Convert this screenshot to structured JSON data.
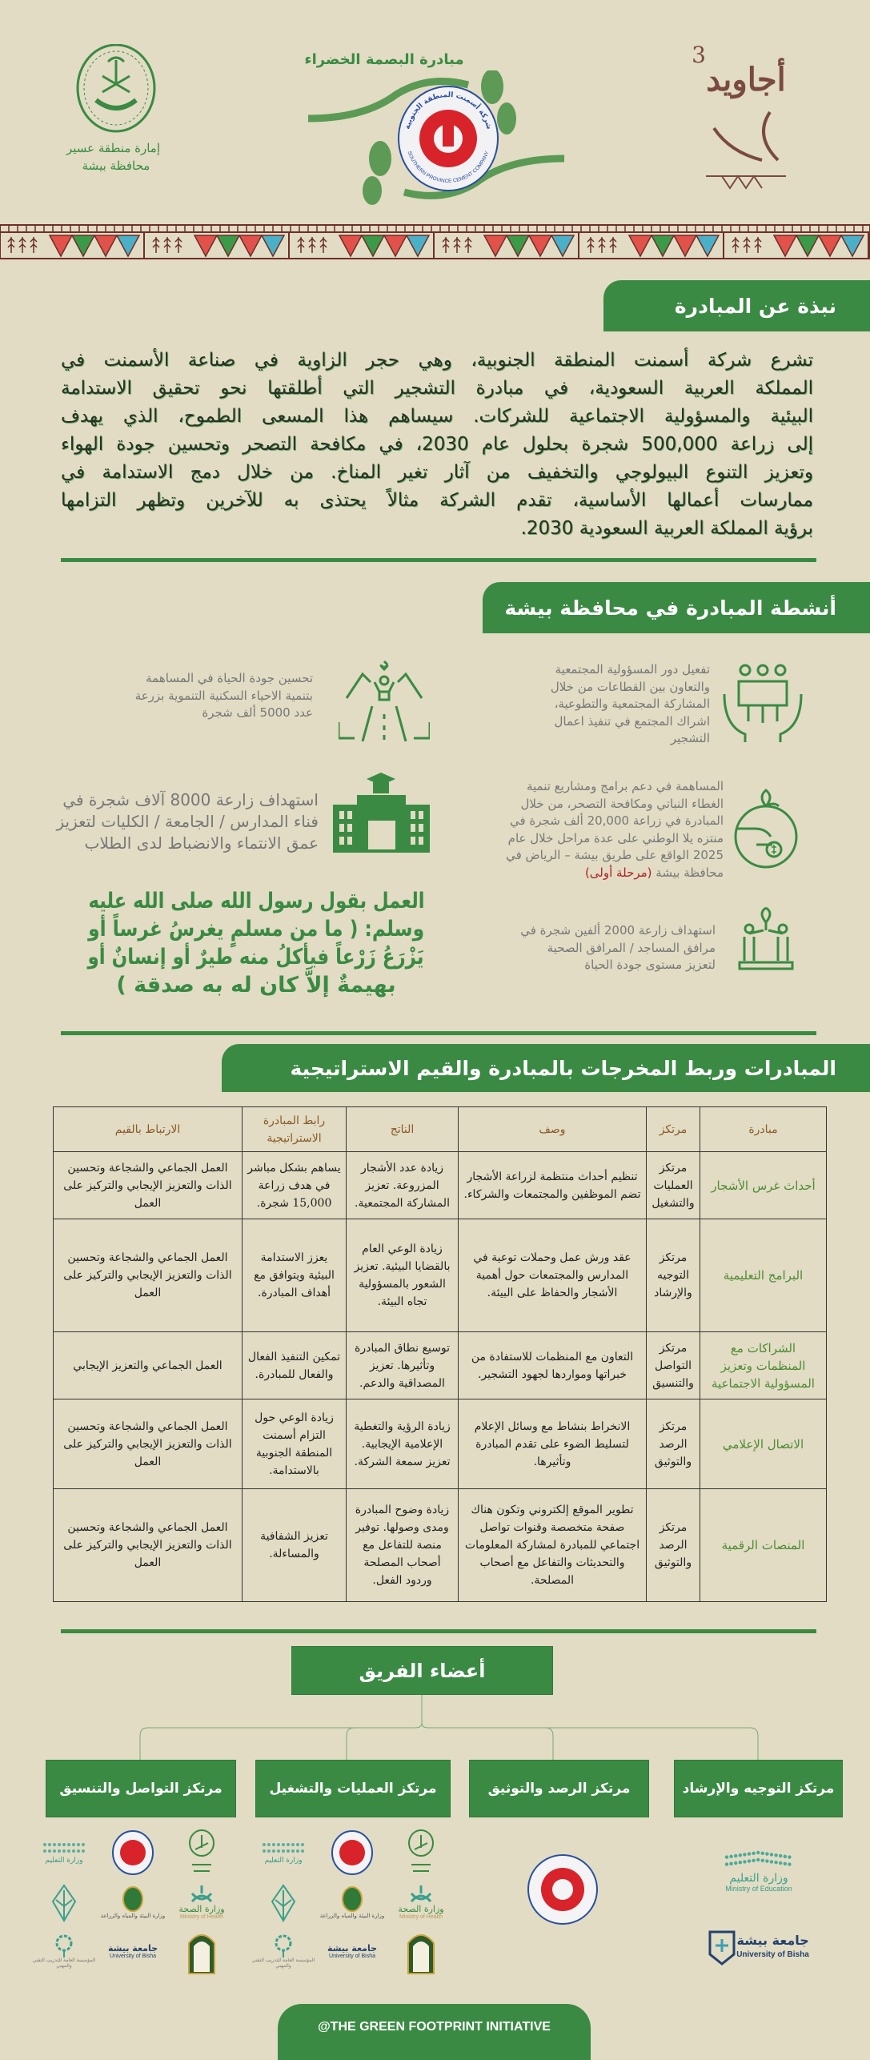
{
  "colors": {
    "brand_green": "#3a8a43",
    "background": "#e1dcc3",
    "highlight_red": "#b0202a",
    "cement_red": "#d8232a",
    "cement_blue": "#2a4fa0"
  },
  "header": {
    "initiative_title": "مبادرة البصمة الخضراء",
    "left_logo_lettering": [
      "إمارة منطقة عسير",
      "محافظة بيشة"
    ],
    "center_logo_lettering": [
      "شركة أسمنت المنطقة الجنوبية",
      "SOUTHERN PROVINCE CEMENT COMPANY"
    ],
    "right_logo_lettering": [
      "أجاويد",
      "3"
    ]
  },
  "about": {
    "title": "نبذة عن المبادرة",
    "lines": [
      "تشرع شركة أسمنت المنطقة الجنوبية، وهي حجر الزاوية في صناعة الأسمنت في",
      "المملكة العربية السعودية، في مبادرة التشجير التي أطلقتها نحو تحقيق الاستدامة",
      "البيئية والمسؤولية الاجتماعية للشركات. سيساهم هذا المسعى الطموح، الذي يهدف",
      "إلى زراعة 500,000 شجرة بحلول عام 2030، في مكافحة التصحر وتحسين جودة الهواء",
      "وتعزيز التنوع البيولوجي والتخفيف من آثار تغير المناخ. من خلال دمج الاستدامة في",
      "ممارسات أعمالها الأساسية، تقدم الشركة مثالاً يحتذى به للآخرين وتظهر التزامها",
      "برؤية المملكة العربية السعودية 2030."
    ]
  },
  "activities": {
    "title": "أنشطة المبادرة في محافظة بيشة",
    "items": [
      {
        "icon": "community-hands-icon",
        "lines": [
          "تفعيل دور المسؤولية المجتمعية",
          "والتعاون بين القطاعات من خلال",
          "المشاركة المجتمعية والتطوعية،",
          "اشراك المجتمع في تنفيذ اعمال",
          "التشجير"
        ]
      },
      {
        "icon": "neighborhood-road-icon",
        "lines": [
          "تحسين جودة الحياة في المساهمة",
          "بتنمية الاحياء السكنية التنموية بزرعة",
          "عدد 5000 ألف شجرة"
        ]
      },
      {
        "icon": "money-plant-hand-icon",
        "lines": [
          "المساهمة في دعم برامج ومشاريع تنمية",
          "الغطاء النباتي ومكافحة التصحر، من خلال",
          "المبادرة في زراعة 20,000 ألف شجرة في",
          "منتزه يلا الوطني على عدة مراحل خلال عام",
          "2025 الواقع على طريق بيشة – الرياض في"
        ],
        "last_line": "محافظة بيشة",
        "highlight": "(مرحلة أولى)"
      },
      {
        "icon": "school-building-icon",
        "lines": [
          "استهداف زارعة 8000 آلاف شجرة في",
          "فناء المدارس / الجامعة / الكليات لتعزيز",
          "عمق الانتماء والانضباط لدى الطلاب"
        ]
      },
      {
        "icon": "people-planting-icon",
        "lines": [
          "استهداف زارعة 2000 ألفين شجرة في",
          "مرافق المساجد / المرافق الصحية",
          "لتعزيز مستوى جودة الحياة"
        ]
      }
    ],
    "quote_lines": [
      "العمل بقول رسول الله صلى الله عليه",
      "وسلم: ( ما من مسلمٍ يغرسُ غرساً أو",
      "يَزْرَعُ زَرْعاً فيأكلُ منه طيرٌ  أو إنسانٌ أو",
      "بهيمةٌ إلاَّ كان له به صدقة )"
    ]
  },
  "strategy": {
    "title": "المبادرات وربط المخرجات بالمبادرة والقيم الاستراتيجية",
    "headers": [
      "مبادرة",
      "مرتكز",
      "وصف",
      "الناتج",
      "رابط المبادرة الاستراتيجية",
      "الارتباط بالقيم"
    ],
    "rows": [
      [
        "أحداث غرس الأشجار",
        "مرتكز العمليات والتشغيل",
        "تنظيم أحداث منتظمة لزراعة الأشجار تضم الموظفين والمجتمعات والشركاء.",
        "زيادة عدد الأشجار المزروعة. تعزيز المشاركة المجتمعية.",
        "يساهم بشكل مباشر في هدف زراعة 15,000 شجرة.",
        "العمل الجماعي والشجاعة وتحسين الذات والتعزيز الإيجابي والتركيز على العمل"
      ],
      [
        "البرامج التعليمية",
        "مرتكز التوجيه والإرشاد",
        "عقد ورش عمل وحملات توعية في المدارس والمجتمعات حول أهمية الأشجار والحفاظ على البيئة.",
        "زيادة الوعي العام بالقضايا البيئية. تعزيز الشعور بالمسؤولية تجاه البيئة.",
        "يعزز الاستدامة البيئية ويتوافق مع أهداف المبادرة.",
        "العمل الجماعي والشجاعة وتحسين الذات والتعزيز الإيجابي والتركيز على العمل"
      ],
      [
        "الشراكات مع المنظمات وتعزيز المسؤولية الاجتماعية",
        "مرتكز التواصل والتنسيق",
        "التعاون مع المنظمات للاستفادة من خبراتها ومواردها لجهود التشجير.",
        "توسيع نطاق المبادرة وتأثيرها. تعزيز المصداقية والدعم.",
        "تمكين التنفيذ الفعال والفعال للمبادرة.",
        "العمل الجماعي والتعزيز الإيجابي"
      ],
      [
        "الاتصال الإعلامي",
        "مرتكز الرصد والتوثيق",
        "الانخراط بنشاط مع وسائل الإعلام لتسليط الضوء على تقدم المبادرة وتأثيرها.",
        "زيادة الرؤية والتغطية الإعلامية الإيجابية. تعزيز سمعة الشركة.",
        "زيادة الوعي حول التزام أسمنت المنطقة الجنوبية بالاستدامة.",
        "العمل الجماعي والشجاعة وتحسين الذات والتعزيز الإيجابي والتركيز على العمل"
      ],
      [
        "المنصات الرقمية",
        "مرتكز الرصد والتوثيق",
        "تطوير الموقع إلكتروني وتكون هناك صفحة متخصصة وقنوات تواصل اجتماعي للمبادرة لمشاركة المعلومات والتحديثات والتفاعل مع أصحاب المصلحة.",
        "زيادة وضوح المبادرة ومدى وصولها. توفير منصة للتفاعل مع أصحاب المصلحة وردود الفعل.",
        "تعزيز الشفافية والمساءلة.",
        "العمل الجماعي والشجاعة وتحسين الذات والتعزيز الإيجابي والتركيز على العمل"
      ]
    ]
  },
  "team": {
    "title": "أعضاء الفريق",
    "centers": [
      "مرتكز التوجيه والإرشاد",
      "مرتكز الرصد والتوثيق",
      "مرتكز العمليات والتشغيل",
      "مرتكز التواصل والتنسيق"
    ]
  },
  "partners": {
    "ministry_of_education": {
      "ar": "وزارة التعليم",
      "en": "Ministry of Education"
    },
    "university_of_bisha": {
      "ar": "جامعة بيشة",
      "en": "University of Bisha"
    },
    "ministry_of_health": {
      "ar": "وزارة الصحة",
      "en": "Ministry of Health"
    },
    "ministry_of_environment": {
      "ar": "وزارة البيئة والمياه والزراعة"
    },
    "tvtc": {
      "ar": "المؤسسة العامة للتدريب التقني والمهني"
    }
  },
  "footer": {
    "handle": "@THE GREEN FOOTPRINT INITIATIVE"
  }
}
